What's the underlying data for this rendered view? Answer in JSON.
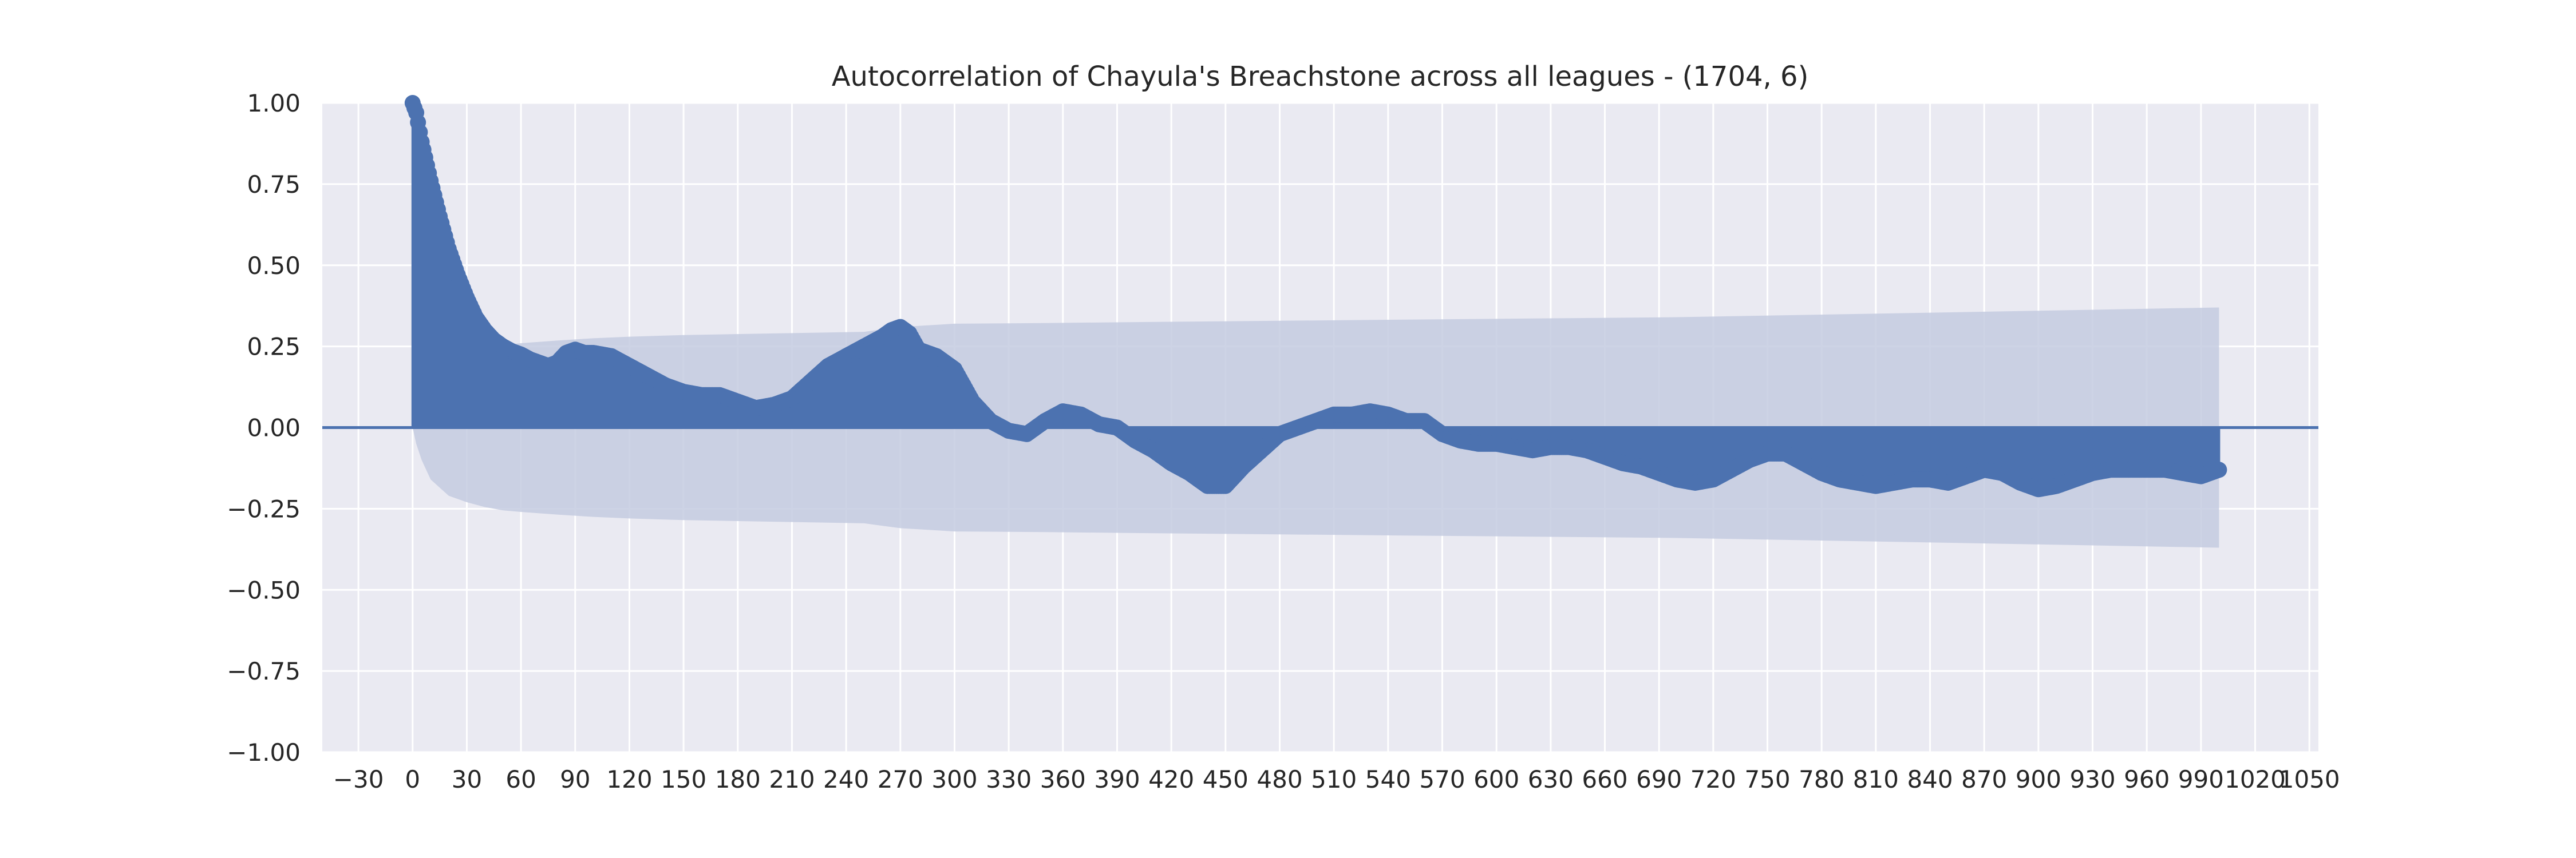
{
  "chart_data": {
    "type": "area",
    "title": "Autocorrelation of Chayula's Breachstone across all leagues - (1704, 6)",
    "xlabel": "",
    "ylabel": "",
    "xlim": [
      -50,
      1055
    ],
    "ylim": [
      -1.0,
      1.0
    ],
    "grid": true,
    "legend": "none",
    "x_ticks": [
      -30,
      0,
      30,
      60,
      90,
      120,
      150,
      180,
      210,
      240,
      270,
      300,
      330,
      360,
      390,
      420,
      450,
      480,
      510,
      540,
      570,
      600,
      630,
      660,
      690,
      720,
      750,
      780,
      810,
      840,
      870,
      900,
      930,
      960,
      990,
      1020,
      1050
    ],
    "x_tick_labels": [
      "−30",
      "0",
      "30",
      "60",
      "90",
      "120",
      "150",
      "180",
      "210",
      "240",
      "270",
      "300",
      "330",
      "360",
      "390",
      "420",
      "450",
      "480",
      "510",
      "540",
      "570",
      "600",
      "630",
      "660",
      "690",
      "720",
      "750",
      "780",
      "810",
      "840",
      "870",
      "900",
      "930",
      "960",
      "990",
      "1020",
      "1050"
    ],
    "y_ticks": [
      -1.0,
      -0.75,
      -0.5,
      -0.25,
      0.0,
      0.25,
      0.5,
      0.75,
      1.0
    ],
    "y_tick_labels": [
      "−1.00",
      "−0.75",
      "−0.50",
      "−0.25",
      "0.00",
      "0.25",
      "0.50",
      "0.75",
      "1.00"
    ],
    "acf": {
      "x": [
        0,
        2,
        5,
        10,
        15,
        20,
        25,
        30,
        35,
        40,
        45,
        50,
        55,
        60,
        65,
        70,
        75,
        80,
        85,
        90,
        95,
        100,
        110,
        120,
        130,
        140,
        150,
        160,
        170,
        180,
        190,
        200,
        210,
        220,
        230,
        240,
        250,
        260,
        265,
        270,
        275,
        280,
        290,
        300,
        310,
        320,
        330,
        340,
        350,
        360,
        370,
        380,
        390,
        400,
        410,
        420,
        430,
        440,
        450,
        460,
        470,
        480,
        490,
        500,
        510,
        520,
        530,
        540,
        550,
        560,
        570,
        580,
        590,
        600,
        610,
        620,
        630,
        640,
        650,
        660,
        670,
        680,
        690,
        700,
        710,
        720,
        730,
        740,
        750,
        760,
        770,
        780,
        790,
        800,
        810,
        820,
        830,
        840,
        850,
        860,
        870,
        880,
        890,
        900,
        910,
        920,
        930,
        940,
        950,
        960,
        970,
        980,
        990,
        1000
      ],
      "y": [
        1.0,
        0.97,
        0.88,
        0.76,
        0.65,
        0.55,
        0.47,
        0.4,
        0.34,
        0.3,
        0.27,
        0.25,
        0.235,
        0.225,
        0.21,
        0.2,
        0.19,
        0.2,
        0.23,
        0.24,
        0.23,
        0.23,
        0.22,
        0.19,
        0.16,
        0.13,
        0.11,
        0.1,
        0.1,
        0.08,
        0.06,
        0.07,
        0.09,
        0.14,
        0.19,
        0.22,
        0.25,
        0.28,
        0.3,
        0.31,
        0.29,
        0.24,
        0.22,
        0.18,
        0.08,
        0.02,
        -0.01,
        -0.02,
        0.02,
        0.05,
        0.04,
        0.01,
        0.0,
        -0.04,
        -0.07,
        -0.11,
        -0.14,
        -0.18,
        -0.18,
        -0.12,
        -0.07,
        -0.02,
        0.0,
        0.02,
        0.04,
        0.04,
        0.05,
        0.04,
        0.02,
        0.02,
        -0.02,
        -0.04,
        -0.05,
        -0.05,
        -0.06,
        -0.07,
        -0.06,
        -0.06,
        -0.07,
        -0.09,
        -0.11,
        -0.12,
        -0.14,
        -0.16,
        -0.17,
        -0.16,
        -0.13,
        -0.1,
        -0.08,
        -0.08,
        -0.11,
        -0.14,
        -0.16,
        -0.17,
        -0.18,
        -0.17,
        -0.16,
        -0.16,
        -0.17,
        -0.15,
        -0.13,
        -0.14,
        -0.17,
        -0.19,
        -0.18,
        -0.16,
        -0.14,
        -0.13,
        -0.13,
        -0.13,
        -0.13,
        -0.14,
        -0.15,
        -0.13
      ]
    },
    "confidence_band": {
      "x": [
        0,
        2,
        5,
        10,
        20,
        30,
        40,
        50,
        60,
        80,
        100,
        120,
        150,
        200,
        250,
        270,
        300,
        350,
        400,
        500,
        600,
        700,
        800,
        900,
        1000
      ],
      "y": [
        0.0,
        0.05,
        0.1,
        0.16,
        0.21,
        0.23,
        0.245,
        0.255,
        0.26,
        0.268,
        0.275,
        0.28,
        0.285,
        0.29,
        0.295,
        0.31,
        0.32,
        0.322,
        0.325,
        0.33,
        0.335,
        0.34,
        0.35,
        0.36,
        0.37
      ]
    },
    "colors": {
      "plot_background": "#eaeaf2",
      "grid": "#ffffff",
      "acf": "#4c72b0",
      "band": "#c4cbe1",
      "text": "#262626"
    }
  }
}
